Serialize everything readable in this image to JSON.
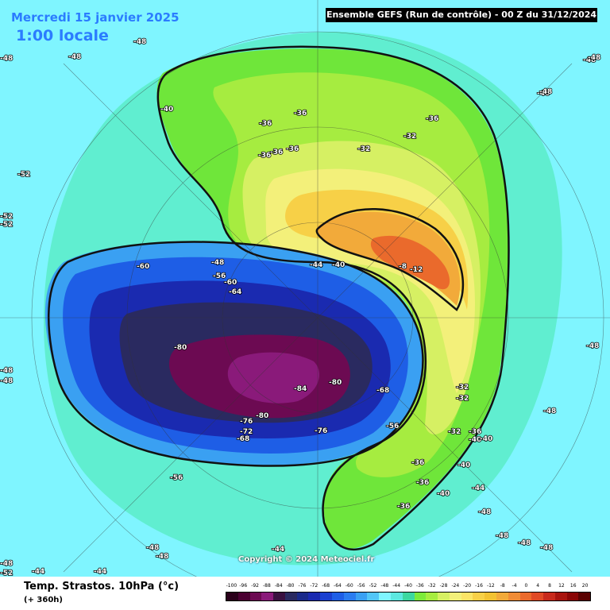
{
  "header": {
    "date": "Mercredi 15 janvier 2025",
    "time": "1:00 locale",
    "run": "Ensemble GEFS  (Run de contrôle)  -  00 Z du 31/12/2024"
  },
  "footer": {
    "title": "Temp. Strastos. 10hPa (°c)",
    "forecast": "(+ 360h)",
    "copyright": "Copyright © 2024 Meteociel.fr"
  },
  "legend": {
    "ticks": [
      "-100",
      "-96",
      "-92",
      "-88",
      "-84",
      "-80",
      "-76",
      "-72",
      "-68",
      "-64",
      "-60",
      "-56",
      "-52",
      "-48",
      "-44",
      "-40",
      "-36",
      "-32",
      "-28",
      "-24",
      "-20",
      "-16",
      "-12",
      "-8",
      "-4",
      "0",
      "4",
      "8",
      "12",
      "16",
      "20"
    ],
    "colors": [
      "#2a001a",
      "#4a0031",
      "#6c0a52",
      "#8a1a7a",
      "#3a1040",
      "#2a2a60",
      "#1a2a8a",
      "#1a2ab0",
      "#1a40d0",
      "#1e5ee6",
      "#2a7cf0",
      "#3aa0f2",
      "#52c6f7",
      "#7ff5ff",
      "#5de8e0",
      "#3cd8a0",
      "#7cea3a",
      "#a6ec40",
      "#d6f063",
      "#f3f07a",
      "#fbe466",
      "#f7d047",
      "#f2c232",
      "#f2aa3a",
      "#f08c36",
      "#ea6a2c",
      "#e04a26",
      "#c82a1c",
      "#a8140e",
      "#8a0606",
      "#5a0202"
    ]
  },
  "isotherms": [
    {
      "text": "-48",
      "color": "#ffffff"
    },
    {
      "text": "-48",
      "color": "#ffffff"
    },
    {
      "text": "-48",
      "color": "#ffffff"
    },
    {
      "text": "-48",
      "color": "#ffffff"
    },
    {
      "text": "-48",
      "color": "#ffffff"
    },
    {
      "text": "-40",
      "color": "#ffffff"
    },
    {
      "text": "-36",
      "color": "#ffffff"
    },
    {
      "text": "-36",
      "color": "#ffffff"
    },
    {
      "text": "-36",
      "color": "#ffffff"
    },
    {
      "text": "-36",
      "color": "#ffffff"
    },
    {
      "text": "-36",
      "color": "#ffffff"
    },
    {
      "text": "-32",
      "color": "#ffffff"
    },
    {
      "text": "-32",
      "color": "#ffffff"
    },
    {
      "text": "-36",
      "color": "#ffffff"
    },
    {
      "text": "-52",
      "color": "#ffffff"
    },
    {
      "text": "-52",
      "color": "#ffffff"
    },
    {
      "text": "-52",
      "color": "#ffffff"
    },
    {
      "text": "-60",
      "color": "#ffffff"
    },
    {
      "text": "-56",
      "color": "#ffffff"
    },
    {
      "text": "-60",
      "color": "#ffffff"
    },
    {
      "text": "-64",
      "color": "#ffffff"
    },
    {
      "text": "-48",
      "color": "#ffffff"
    },
    {
      "text": "-44",
      "color": "#ffffff"
    },
    {
      "text": "-40",
      "color": "#ffffff"
    },
    {
      "text": "-8",
      "color": "#ffffff"
    },
    {
      "text": "-12",
      "color": "#ffffff"
    },
    {
      "text": "-80",
      "color": "#ffffff"
    },
    {
      "text": "-84",
      "color": "#ffffff"
    },
    {
      "text": "-80",
      "color": "#ffffff"
    },
    {
      "text": "-68",
      "color": "#ffffff"
    },
    {
      "text": "-76",
      "color": "#ffffff"
    },
    {
      "text": "-80",
      "color": "#ffffff"
    },
    {
      "text": "-72",
      "color": "#ffffff"
    },
    {
      "text": "-68",
      "color": "#ffffff"
    },
    {
      "text": "-76",
      "color": "#ffffff"
    },
    {
      "text": "-56",
      "color": "#ffffff"
    },
    {
      "text": "-32",
      "color": "#ffffff"
    },
    {
      "text": "-32",
      "color": "#ffffff"
    },
    {
      "text": "-32",
      "color": "#ffffff"
    },
    {
      "text": "-36",
      "color": "#ffffff"
    },
    {
      "text": "-40",
      "color": "#ffffff"
    },
    {
      "text": "-40",
      "color": "#ffffff"
    },
    {
      "text": "-36",
      "color": "#ffffff"
    },
    {
      "text": "-40",
      "color": "#ffffff"
    },
    {
      "text": "-36",
      "color": "#ffffff"
    },
    {
      "text": "-40",
      "color": "#ffffff"
    },
    {
      "text": "-44",
      "color": "#ffffff"
    },
    {
      "text": "-36",
      "color": "#ffffff"
    },
    {
      "text": "-48",
      "color": "#ffffff"
    },
    {
      "text": "-48",
      "color": "#ffffff"
    },
    {
      "text": "-48",
      "color": "#ffffff"
    },
    {
      "text": "-48",
      "color": "#ffffff"
    },
    {
      "text": "-48",
      "color": "#ffffff"
    },
    {
      "text": "-44",
      "color": "#ffffff"
    },
    {
      "text": "-44",
      "color": "#ffffff"
    },
    {
      "text": "-44",
      "color": "#ffffff"
    },
    {
      "text": "-56",
      "color": "#ffffff"
    },
    {
      "text": "-48",
      "color": "#ffffff"
    },
    {
      "text": "-48",
      "color": "#ffffff"
    },
    {
      "text": "-48",
      "color": "#ffffff"
    },
    {
      "text": "-52",
      "color": "#ffffff"
    },
    {
      "text": "-48",
      "color": "#ffffff"
    },
    {
      "text": "-48",
      "color": "#ffffff"
    },
    {
      "text": "-48",
      "color": "#ffffff"
    },
    {
      "text": "-48",
      "color": "#ffffff"
    },
    {
      "text": "-48",
      "color": "#ffffff"
    }
  ]
}
